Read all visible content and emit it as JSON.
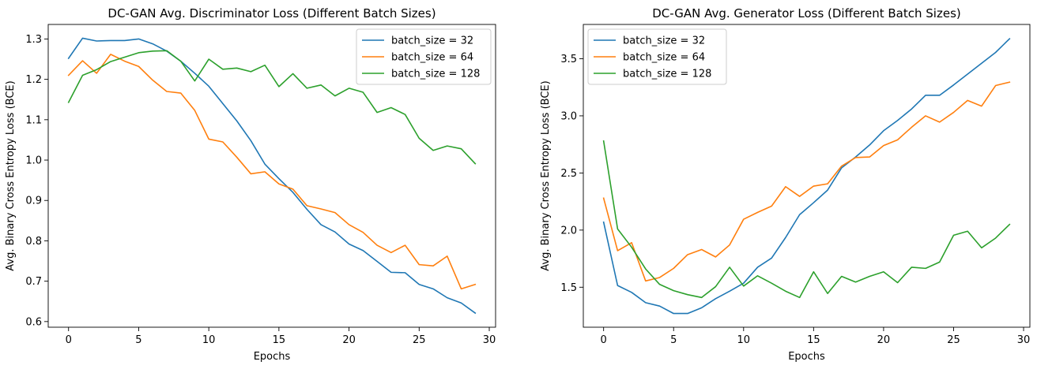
{
  "chart_data": [
    {
      "type": "line",
      "title": "DC-GAN Avg. Discriminator Loss (Different Batch Sizes)",
      "xlabel": "Epochs",
      "ylabel": "Avg. Binary Cross Entropy Loss (BCE)",
      "xlim": [
        -1.45,
        30.45
      ],
      "ylim": [
        0.586,
        1.336
      ],
      "xticks": [
        0,
        5,
        10,
        15,
        20,
        25,
        30
      ],
      "xtick_labels": [
        "0",
        "5",
        "10",
        "15",
        "20",
        "25",
        "30"
      ],
      "yticks": [
        0.6,
        0.7,
        0.8,
        0.9,
        1.0,
        1.1,
        1.2,
        1.3
      ],
      "ytick_labels": [
        "0.6",
        "0.7",
        "0.8",
        "0.9",
        "1.0",
        "1.1",
        "1.2",
        "1.3"
      ],
      "legend_position": "top-right",
      "grid": false,
      "x": [
        0,
        1,
        2,
        3,
        4,
        5,
        6,
        7,
        8,
        9,
        10,
        11,
        12,
        13,
        14,
        15,
        16,
        17,
        18,
        19,
        20,
        21,
        22,
        23,
        24,
        25,
        26,
        27,
        28,
        29
      ],
      "series": [
        {
          "name": "batch_size = 32",
          "color": "#1f77b4",
          "values": [
            1.252,
            1.302,
            1.295,
            1.296,
            1.296,
            1.3,
            1.288,
            1.27,
            1.245,
            1.215,
            1.183,
            1.14,
            1.097,
            1.048,
            0.99,
            0.954,
            0.92,
            0.878,
            0.84,
            0.822,
            0.792,
            0.776,
            0.749,
            0.722,
            0.721,
            0.692,
            0.681,
            0.659,
            0.646,
            0.621
          ]
        },
        {
          "name": "batch_size = 64",
          "color": "#ff7f0e",
          "values": [
            1.21,
            1.246,
            1.215,
            1.262,
            1.245,
            1.232,
            1.198,
            1.17,
            1.166,
            1.123,
            1.052,
            1.045,
            1.007,
            0.966,
            0.971,
            0.941,
            0.928,
            0.887,
            0.879,
            0.87,
            0.84,
            0.821,
            0.789,
            0.771,
            0.789,
            0.741,
            0.738,
            0.762,
            0.681,
            0.692
          ]
        },
        {
          "name": "batch_size = 128",
          "color": "#2ca02c",
          "values": [
            1.143,
            1.21,
            1.224,
            1.244,
            1.255,
            1.266,
            1.27,
            1.271,
            1.245,
            1.196,
            1.25,
            1.225,
            1.228,
            1.219,
            1.235,
            1.182,
            1.214,
            1.178,
            1.186,
            1.159,
            1.178,
            1.168,
            1.118,
            1.13,
            1.113,
            1.054,
            1.024,
            1.035,
            1.028,
            0.991
          ]
        }
      ]
    },
    {
      "type": "line",
      "title": "DC-GAN Avg. Generator Loss (Different Batch Sizes)",
      "xlabel": "Epochs",
      "ylabel": "Avg. Binary Cross Entropy Loss (BCE)",
      "xlim": [
        -1.45,
        30.45
      ],
      "ylim": [
        1.15,
        3.8
      ],
      "xticks": [
        0,
        5,
        10,
        15,
        20,
        25,
        30
      ],
      "xtick_labels": [
        "0",
        "5",
        "10",
        "15",
        "20",
        "25",
        "30"
      ],
      "yticks": [
        1.5,
        2.0,
        2.5,
        3.0,
        3.5
      ],
      "ytick_labels": [
        "1.5",
        "2.0",
        "2.5",
        "3.0",
        "3.5"
      ],
      "legend_position": "top-left",
      "grid": false,
      "x": [
        0,
        1,
        2,
        3,
        4,
        5,
        6,
        7,
        8,
        9,
        10,
        11,
        12,
        13,
        14,
        15,
        16,
        17,
        18,
        19,
        20,
        21,
        22,
        23,
        24,
        25,
        26,
        27,
        28,
        29
      ],
      "series": [
        {
          "name": "batch_size = 32",
          "color": "#1f77b4",
          "values": [
            2.07,
            1.515,
            1.455,
            1.365,
            1.335,
            1.27,
            1.27,
            1.32,
            1.4,
            1.465,
            1.535,
            1.675,
            1.755,
            1.935,
            2.135,
            2.24,
            2.35,
            2.545,
            2.64,
            2.745,
            2.87,
            2.96,
            3.06,
            3.18,
            3.18,
            3.27,
            3.365,
            3.46,
            3.555,
            3.675
          ]
        },
        {
          "name": "batch_size = 64",
          "color": "#ff7f0e",
          "values": [
            2.28,
            1.82,
            1.89,
            1.555,
            1.585,
            1.665,
            1.785,
            1.83,
            1.765,
            1.87,
            2.095,
            2.155,
            2.21,
            2.38,
            2.295,
            2.385,
            2.405,
            2.56,
            2.635,
            2.64,
            2.74,
            2.79,
            2.9,
            3.0,
            2.945,
            3.03,
            3.135,
            3.085,
            3.265,
            3.295
          ]
        },
        {
          "name": "batch_size = 128",
          "color": "#2ca02c",
          "values": [
            2.78,
            2.01,
            1.85,
            1.66,
            1.525,
            1.47,
            1.435,
            1.41,
            1.505,
            1.675,
            1.51,
            1.6,
            1.535,
            1.465,
            1.41,
            1.635,
            1.445,
            1.595,
            1.545,
            1.595,
            1.635,
            1.54,
            1.675,
            1.665,
            1.72,
            1.955,
            1.99,
            1.845,
            1.93,
            2.05
          ]
        }
      ]
    }
  ]
}
